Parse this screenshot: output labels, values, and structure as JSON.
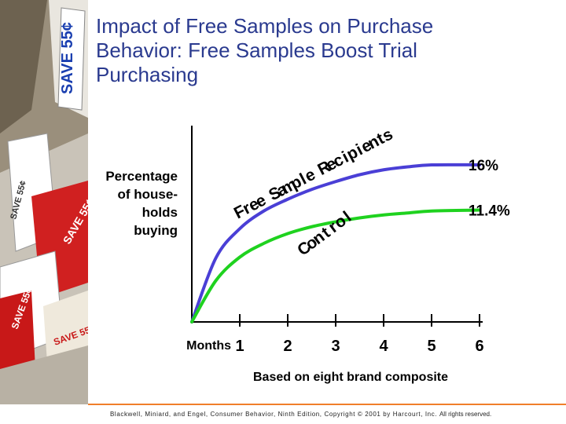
{
  "slide": {
    "title_lines": [
      "Impact of Free Samples on Purchase",
      "Behavior: Free Samples Boost Trial",
      "Purchasing"
    ],
    "caption": "Based on eight brand composite",
    "footer": "Blackwell, Miniard, and Engel, Consumer Behavior, Ninth Edition, Copyright © 2001 by Harcourt, Inc.",
    "footer_rights": "All rights reserved.",
    "decor": {
      "coupon_texts": [
        "SAVE 55¢",
        "SAVE 55¢",
        "SAVE 55¢",
        "SAVE 55¢",
        "SAVE 55¢"
      ]
    },
    "colors": {
      "title": "#2a3a8f",
      "free_sample_line": "#4a3fd6",
      "control_line": "#1fd21f",
      "footer_rule": "#f07f2a"
    }
  },
  "chart_data": {
    "type": "line",
    "ylabel_lines": [
      "Percentage",
      "of house-",
      "holds",
      "buying"
    ],
    "xlabel": "Months",
    "x": [
      1,
      2,
      3,
      4,
      5,
      6
    ],
    "xlim": [
      0,
      6
    ],
    "ylim": [
      0,
      20
    ],
    "series": [
      {
        "name": "Free Sample Recipients",
        "x": [
          0,
          0.5,
          1,
          1.5,
          2,
          2.5,
          3,
          3.5,
          4,
          4.5,
          5,
          6
        ],
        "values": [
          0,
          6.5,
          9.5,
          11.3,
          12.5,
          13.5,
          14.3,
          15.0,
          15.5,
          15.8,
          16.0,
          16.0
        ],
        "end_label": "16%",
        "color": "#4a3fd6"
      },
      {
        "name": "Control",
        "x": [
          0,
          0.5,
          1,
          1.5,
          2,
          2.5,
          3,
          3.5,
          4,
          4.5,
          5,
          6
        ],
        "values": [
          0,
          4.2,
          6.6,
          8.0,
          9.0,
          9.7,
          10.2,
          10.6,
          10.9,
          11.1,
          11.3,
          11.4
        ],
        "end_label": "11.4%",
        "color": "#1fd21f"
      }
    ],
    "grid": false
  }
}
